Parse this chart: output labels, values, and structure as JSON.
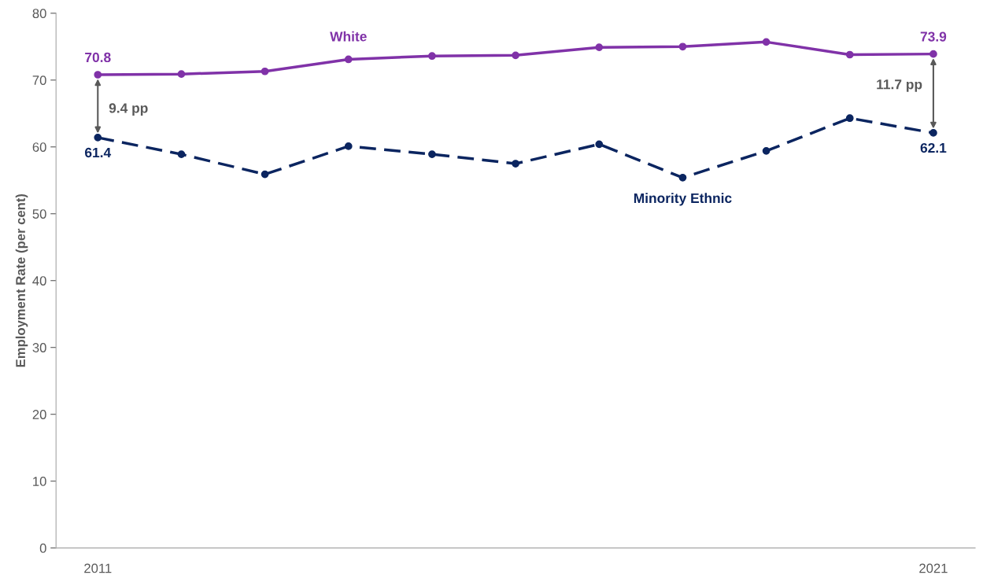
{
  "chart_data": {
    "type": "line",
    "ylabel": "Employment Rate (per cent)",
    "categories": [
      "2011",
      null,
      null,
      null,
      null,
      null,
      null,
      null,
      null,
      null,
      "2021"
    ],
    "series": [
      {
        "name": "White",
        "color": "#8032a8",
        "line_style": "solid",
        "values": [
          70.8,
          70.9,
          71.3,
          73.1,
          73.6,
          73.7,
          74.9,
          75.0,
          75.7,
          73.8,
          73.9
        ],
        "value_labels": [
          "70.8",
          null,
          null,
          null,
          null,
          null,
          null,
          null,
          null,
          null,
          "73.9"
        ]
      },
      {
        "name": "Minority Ethnic",
        "color": "#0b2560",
        "line_style": "dashed",
        "values": [
          61.4,
          58.9,
          55.9,
          60.1,
          58.9,
          57.5,
          60.4,
          55.4,
          59.4,
          64.3,
          62.1
        ],
        "value_labels": [
          "61.4",
          null,
          null,
          null,
          null,
          null,
          null,
          null,
          null,
          null,
          "62.1"
        ]
      }
    ],
    "annotations": [
      "9.4 pp",
      "11.7 pp"
    ],
    "ylim": [
      0,
      80
    ],
    "yticks": [
      0,
      10,
      20,
      30,
      40,
      50,
      60,
      70,
      80
    ],
    "marker": "circle",
    "grid": false,
    "legend": false
  }
}
